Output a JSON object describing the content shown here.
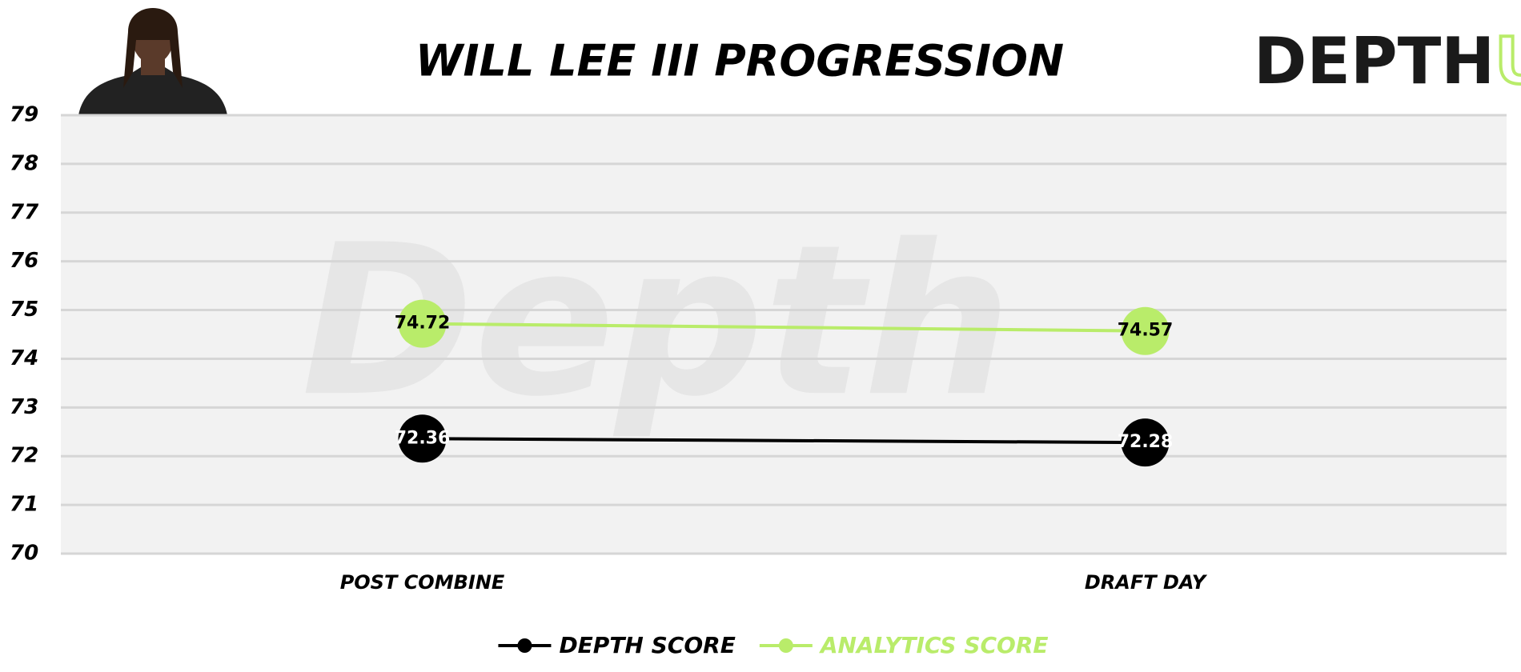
{
  "chart_data": {
    "type": "line",
    "title": "WILL LEE III PROGRESSION",
    "logo": {
      "main": "DEPTH",
      "accent": "U"
    },
    "watermark": "Depth",
    "categories": [
      "POST COMBINE",
      "DRAFT DAY"
    ],
    "series": [
      {
        "name": "DEPTH SCORE",
        "color": "#000000",
        "label_color": "#ffffff",
        "values": [
          72.36,
          72.28
        ]
      },
      {
        "name": "ANALYTICS SCORE",
        "color": "#b9ec6a",
        "label_color": "#000000",
        "values": [
          74.72,
          74.57
        ]
      }
    ],
    "ylim": [
      70,
      79
    ],
    "yticks": [
      70,
      71,
      72,
      73,
      74,
      75,
      76,
      77,
      78,
      79
    ],
    "grid": true
  }
}
